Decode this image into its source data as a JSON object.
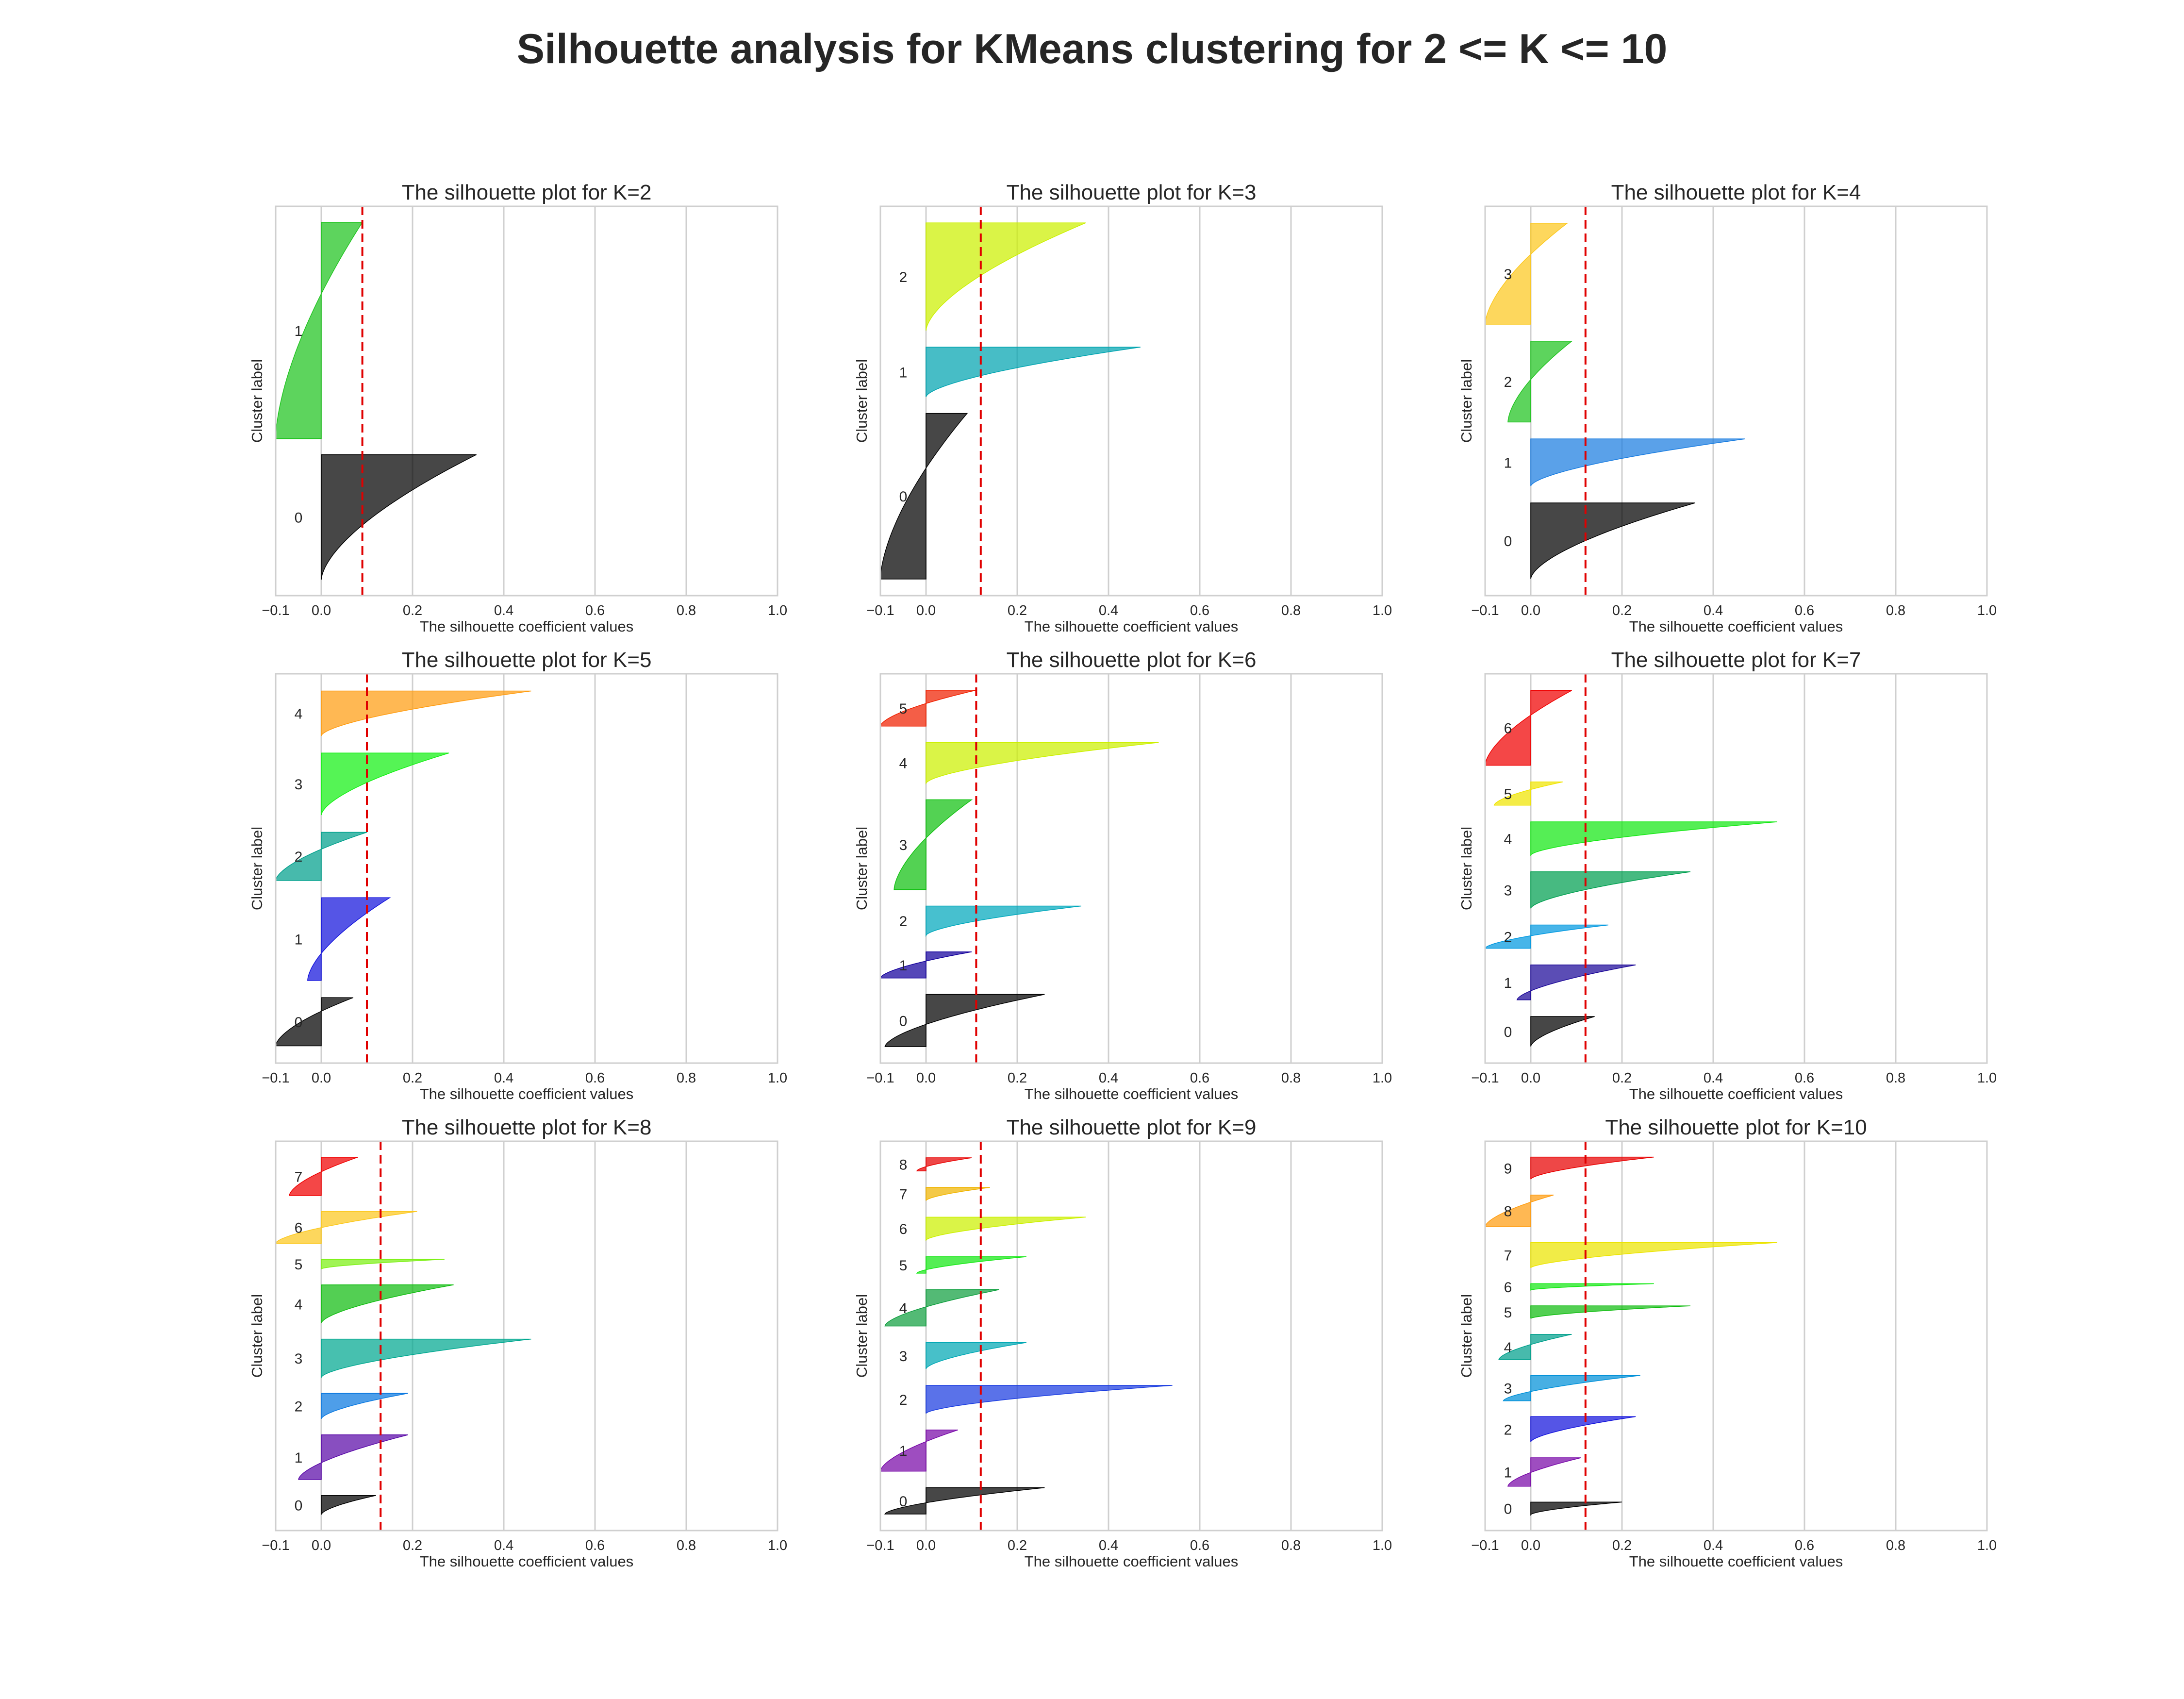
{
  "suptitle": "Silhouette analysis for KMeans clustering for 2 <= K <= 10",
  "chart_data": {
    "type": "silhouette-grid",
    "xlabel": "The silhouette coefficient values",
    "ylabel": "Cluster label",
    "xlim": [
      -0.1,
      1.0
    ],
    "xticks": [
      -0.1,
      0.0,
      0.2,
      0.4,
      0.6,
      0.8,
      1.0
    ],
    "xtick_labels": [
      "−0.1",
      "0.0",
      "0.2",
      "0.4",
      "0.6",
      "0.8",
      "1.0"
    ],
    "grid": true,
    "panels": [
      {
        "title": "The silhouette plot for K=2",
        "k": 2,
        "avg_score": 0.09,
        "clusters": [
          {
            "label": "0",
            "color": "#000000",
            "min": 0.0,
            "max": 0.34,
            "size": 78
          },
          {
            "label": "1",
            "color": "#1ec31e",
            "min": -0.1,
            "max": 0.09,
            "size": 135
          }
        ]
      },
      {
        "title": "The silhouette plot for K=3",
        "k": 3,
        "avg_score": 0.12,
        "clusters": [
          {
            "label": "0",
            "color": "#000000",
            "min": -0.1,
            "max": 0.09,
            "size": 100
          },
          {
            "label": "1",
            "color": "#00a4b0",
            "min": 0.0,
            "max": 0.47,
            "size": 30
          },
          {
            "label": "2",
            "color": "#ccf000",
            "min": 0.0,
            "max": 0.35,
            "size": 65
          }
        ]
      },
      {
        "title": "The silhouette plot for K=4",
        "k": 4,
        "avg_score": 0.12,
        "clusters": [
          {
            "label": "0",
            "color": "#000000",
            "min": 0.0,
            "max": 0.36,
            "size": 45
          },
          {
            "label": "1",
            "color": "#1a7de0",
            "min": 0.0,
            "max": 0.47,
            "size": 28
          },
          {
            "label": "2",
            "color": "#1ec31e",
            "min": -0.05,
            "max": 0.09,
            "size": 48
          },
          {
            "label": "3",
            "color": "#fcc81e",
            "min": -0.1,
            "max": 0.08,
            "size": 60
          }
        ]
      },
      {
        "title": "The silhouette plot for K=5",
        "k": 5,
        "avg_score": 0.1,
        "clusters": [
          {
            "label": "0",
            "color": "#000000",
            "min": -0.1,
            "max": 0.07,
            "size": 28
          },
          {
            "label": "1",
            "color": "#1414dc",
            "min": -0.03,
            "max": 0.15,
            "size": 48
          },
          {
            "label": "2",
            "color": "#00a08c",
            "min": -0.1,
            "max": 0.1,
            "size": 28
          },
          {
            "label": "3",
            "color": "#14f014",
            "min": 0.0,
            "max": 0.28,
            "size": 36
          },
          {
            "label": "4",
            "color": "#ff9c10",
            "min": 0.0,
            "max": 0.46,
            "size": 26
          }
        ]
      },
      {
        "title": "The silhouette plot for K=6",
        "k": 6,
        "avg_score": 0.11,
        "clusters": [
          {
            "label": "0",
            "color": "#000000",
            "min": -0.09,
            "max": 0.26,
            "size": 32
          },
          {
            "label": "1",
            "color": "#14009c",
            "min": -0.1,
            "max": 0.1,
            "size": 16
          },
          {
            "label": "2",
            "color": "#00a8bc",
            "min": 0.0,
            "max": 0.34,
            "size": 18
          },
          {
            "label": "3",
            "color": "#10c010",
            "min": -0.07,
            "max": 0.1,
            "size": 55
          },
          {
            "label": "4",
            "color": "#ccf000",
            "min": 0.0,
            "max": 0.51,
            "size": 25
          },
          {
            "label": "5",
            "color": "#f02000",
            "min": -0.1,
            "max": 0.11,
            "size": 22
          }
        ]
      },
      {
        "title": "The silhouette plot for K=7",
        "k": 7,
        "avg_score": 0.12,
        "clusters": [
          {
            "label": "0",
            "color": "#000000",
            "min": 0.0,
            "max": 0.14,
            "size": 18
          },
          {
            "label": "1",
            "color": "#1c0898",
            "min": -0.03,
            "max": 0.23,
            "size": 21
          },
          {
            "label": "2",
            "color": "#0098e0",
            "min": -0.1,
            "max": 0.17,
            "size": 14
          },
          {
            "label": "3",
            "color": "#00a050",
            "min": 0.0,
            "max": 0.35,
            "size": 22
          },
          {
            "label": "4",
            "color": "#14e814",
            "min": 0.0,
            "max": 0.54,
            "size": 20
          },
          {
            "label": "5",
            "color": "#f0e400",
            "min": -0.08,
            "max": 0.07,
            "size": 14
          },
          {
            "label": "6",
            "color": "#f00000",
            "min": -0.1,
            "max": 0.09,
            "size": 45
          }
        ]
      },
      {
        "title": "The silhouette plot for K=8",
        "k": 8,
        "avg_score": 0.13,
        "clusters": [
          {
            "label": "0",
            "color": "#000000",
            "min": 0.0,
            "max": 0.12,
            "size": 12
          },
          {
            "label": "1",
            "color": "#5a0aa8",
            "min": -0.05,
            "max": 0.19,
            "size": 28
          },
          {
            "label": "2",
            "color": "#0a78e0",
            "min": 0.0,
            "max": 0.19,
            "size": 16
          },
          {
            "label": "3",
            "color": "#00a890",
            "min": 0.0,
            "max": 0.46,
            "size": 24
          },
          {
            "label": "4",
            "color": "#10bc10",
            "min": 0.0,
            "max": 0.29,
            "size": 24
          },
          {
            "label": "5",
            "color": "#7cf014",
            "min": 0.0,
            "max": 0.27,
            "size": 6
          },
          {
            "label": "6",
            "color": "#fcc81e",
            "min": -0.1,
            "max": 0.21,
            "size": 20
          },
          {
            "label": "7",
            "color": "#f00000",
            "min": -0.07,
            "max": 0.08,
            "size": 24
          }
        ]
      },
      {
        "title": "The silhouette plot for K=9",
        "k": 9,
        "avg_score": 0.12,
        "clusters": [
          {
            "label": "0",
            "color": "#000000",
            "min": -0.09,
            "max": 0.26,
            "size": 16
          },
          {
            "label": "1",
            "color": "#7808a8",
            "min": -0.1,
            "max": 0.07,
            "size": 25
          },
          {
            "label": "2",
            "color": "#1a3ce0",
            "min": 0.0,
            "max": 0.54,
            "size": 17
          },
          {
            "label": "3",
            "color": "#00a8b4",
            "min": 0.0,
            "max": 0.22,
            "size": 16
          },
          {
            "label": "4",
            "color": "#10a040",
            "min": -0.09,
            "max": 0.16,
            "size": 22
          },
          {
            "label": "5",
            "color": "#14e814",
            "min": -0.02,
            "max": 0.22,
            "size": 10
          },
          {
            "label": "6",
            "color": "#ccf000",
            "min": 0.0,
            "max": 0.35,
            "size": 14
          },
          {
            "label": "7",
            "color": "#f0b400",
            "min": 0.0,
            "max": 0.14,
            "size": 8
          },
          {
            "label": "8",
            "color": "#e80000",
            "min": -0.02,
            "max": 0.1,
            "size": 8
          }
        ]
      },
      {
        "title": "The silhouette plot for K=10",
        "k": 10,
        "avg_score": 0.12,
        "clusters": [
          {
            "label": "0",
            "color": "#000000",
            "min": 0.0,
            "max": 0.2,
            "size": 8
          },
          {
            "label": "1",
            "color": "#7808a8",
            "min": -0.05,
            "max": 0.11,
            "size": 18
          },
          {
            "label": "2",
            "color": "#1414dc",
            "min": 0.0,
            "max": 0.23,
            "size": 16
          },
          {
            "label": "3",
            "color": "#0090d8",
            "min": -0.06,
            "max": 0.24,
            "size": 16
          },
          {
            "label": "4",
            "color": "#00a08c",
            "min": -0.07,
            "max": 0.09,
            "size": 16
          },
          {
            "label": "5",
            "color": "#10bc10",
            "min": 0.0,
            "max": 0.35,
            "size": 8
          },
          {
            "label": "6",
            "color": "#14e814",
            "min": 0.0,
            "max": 0.27,
            "size": 4
          },
          {
            "label": "7",
            "color": "#ece400",
            "min": 0.0,
            "max": 0.54,
            "size": 16
          },
          {
            "label": "8",
            "color": "#ff9c10",
            "min": -0.1,
            "max": 0.05,
            "size": 20
          },
          {
            "label": "9",
            "color": "#e80000",
            "min": 0.0,
            "max": 0.27,
            "size": 14
          }
        ]
      }
    ]
  }
}
